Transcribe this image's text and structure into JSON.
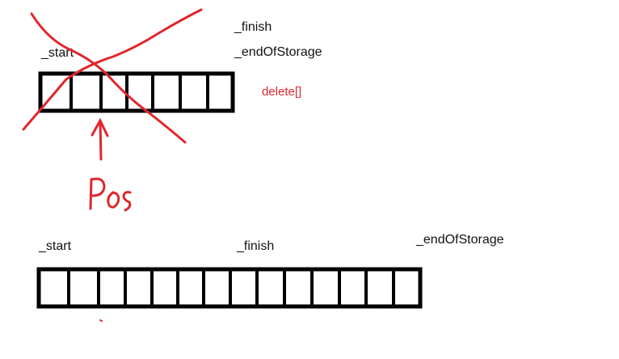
{
  "top_array": {
    "start_label": "_start",
    "finish_label": "_finish",
    "end_of_storage_label": "_endOfStorage",
    "delete_note": "delete[]",
    "pos_note": "Pos",
    "cell_count": 7
  },
  "bottom_array": {
    "start_label": "_start",
    "finish_label": "_finish",
    "end_of_storage_label": "_endOfStorage",
    "cell_count": 14
  },
  "colors": {
    "ink": "#000000",
    "annotation_red": "#e0262c"
  }
}
